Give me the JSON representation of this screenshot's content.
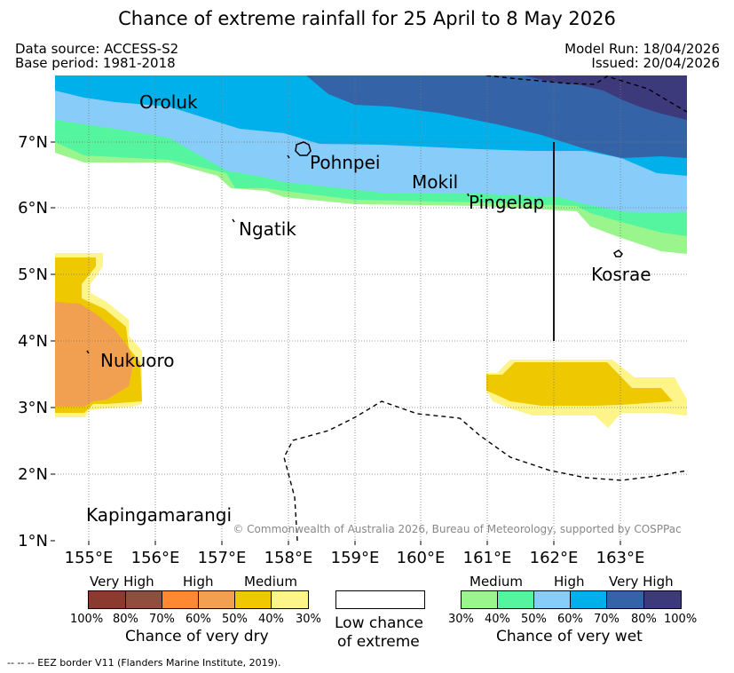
{
  "title": "Chance of extreme rainfall for 25 April to 8 May 2026",
  "meta": {
    "data_source": "Data source: ACCESS-S2",
    "base_period": "Base period: 1981-2018",
    "model_run": "Model Run: 18/04/2026",
    "issued": "Issued: 20/04/2026"
  },
  "map": {
    "lon_ticks": [
      "155°E",
      "156°E",
      "157°E",
      "158°E",
      "159°E",
      "160°E",
      "161°E",
      "162°E",
      "163°E"
    ],
    "lat_ticks": [
      "7°N",
      "6°N",
      "5°N",
      "4°N",
      "3°N",
      "2°N",
      "1°N"
    ],
    "places": {
      "oroluk": "Oroluk",
      "pohnpei": "Pohnpei",
      "mokil": "Mokil",
      "pingelap": "Pingelap",
      "ngatik": "Ngatik",
      "kosrae": "Kosrae",
      "nukuoro": "Nukuoro",
      "kapingamarangi": "Kapingamarangi"
    },
    "copyright": "© Commonwealth of Australia 2026, Bureau of Meteorology, supported by COSPPac"
  },
  "legend": {
    "dry": {
      "levels": [
        "Very High",
        "High",
        "Medium"
      ],
      "ticks": [
        "100%",
        "80%",
        "70%",
        "60%",
        "50%",
        "40%",
        "30%"
      ],
      "caption": "Chance of very dry",
      "colors": [
        "#8b3a2f",
        "#8f4f3e",
        "#ff8833",
        "#f0a050",
        "#eec800",
        "#fdf58a"
      ]
    },
    "low": {
      "line1": "Low chance",
      "line2": "of extreme"
    },
    "wet": {
      "levels": [
        "Medium",
        "High",
        "Very High"
      ],
      "ticks": [
        "30%",
        "40%",
        "50%",
        "60%",
        "70%",
        "80%",
        "100%"
      ],
      "caption": "Chance of very wet",
      "colors": [
        "#99f58c",
        "#55f5a0",
        "#88ccfa",
        "#00b0eb",
        "#3563a8",
        "#3c3a7a"
      ]
    }
  },
  "footnote": "-- -- -- EEZ border V11 (Flanders Marine Institute, 2019)."
}
